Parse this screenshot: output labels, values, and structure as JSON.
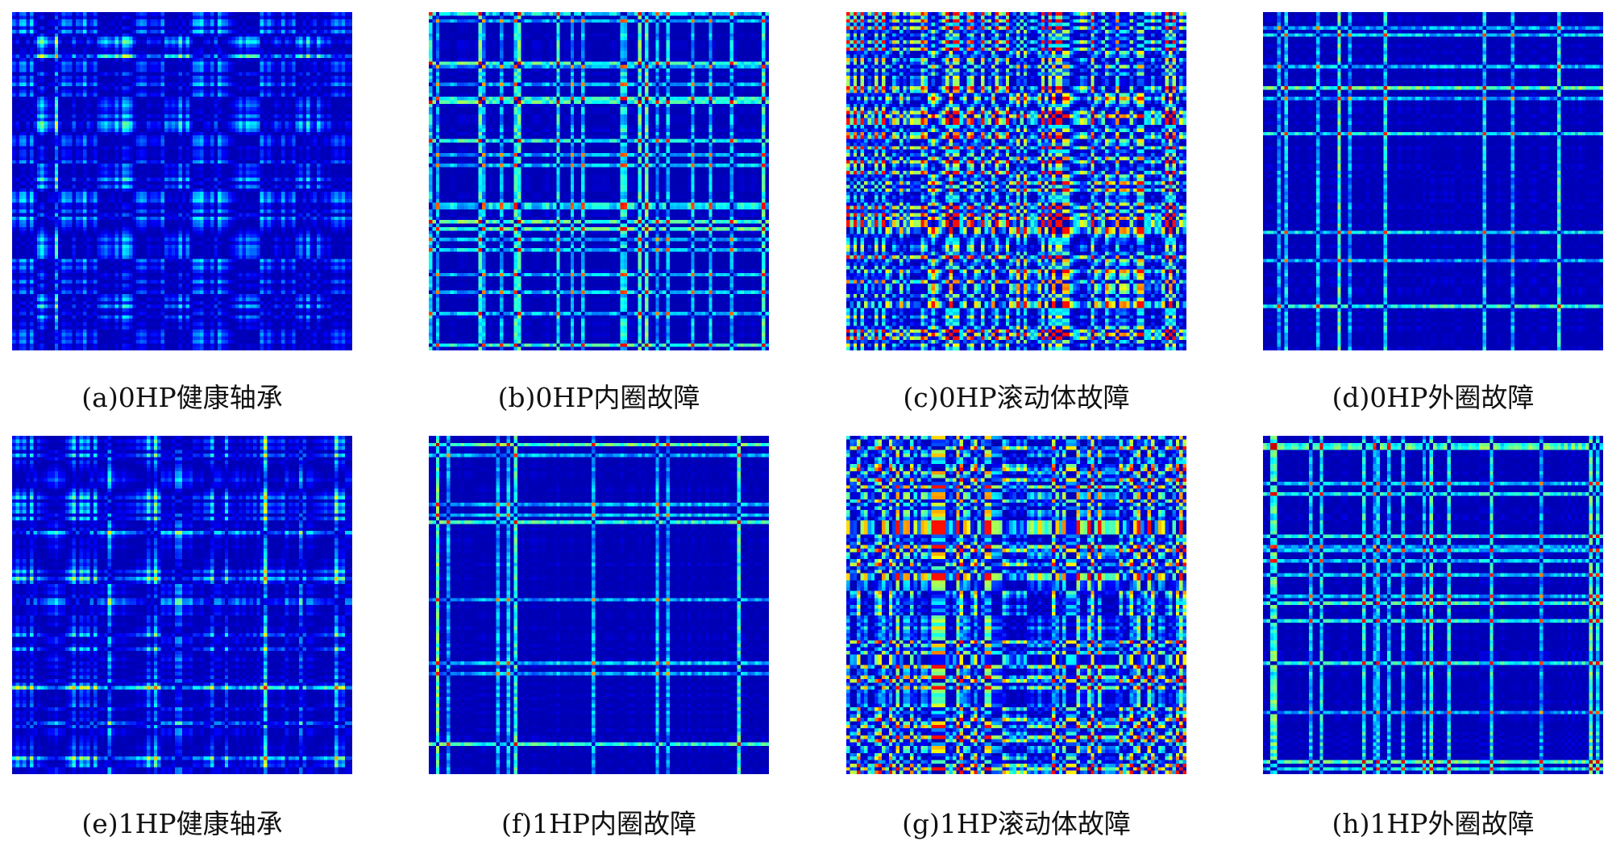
{
  "colormap": "jet",
  "panels": [
    {
      "caption": "(a)0HP健康轴承",
      "seed": 11,
      "style": "healthy"
    },
    {
      "caption": "(b)0HP内圈故障",
      "seed": 23,
      "style": "sparse"
    },
    {
      "caption": "(c)0HP滚动体故障",
      "seed": 37,
      "style": "dense"
    },
    {
      "caption": "(d)0HP外圈故障",
      "seed": 41,
      "style": "sparse"
    },
    {
      "caption": "(e)1HP健康轴承",
      "seed": 53,
      "style": "healthy"
    },
    {
      "caption": "(f)1HP内圈故障",
      "seed": 67,
      "style": "sparse"
    },
    {
      "caption": "(g)1HP滚动体故障",
      "seed": 79,
      "style": "dense"
    },
    {
      "caption": "(h)1HP外圈故障",
      "seed": 83,
      "style": "sparse"
    }
  ]
}
